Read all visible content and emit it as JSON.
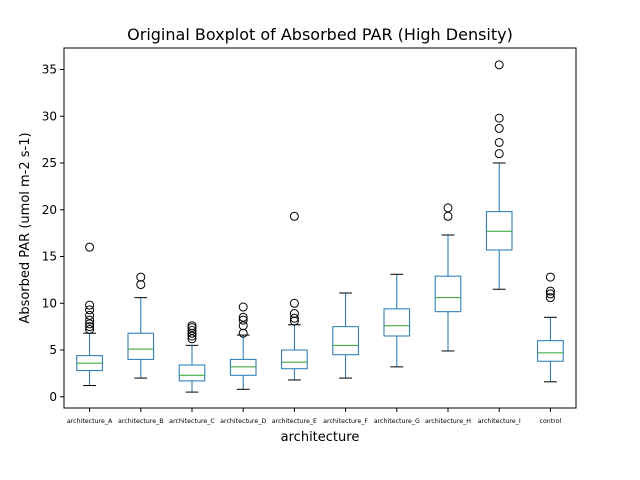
{
  "chart_data": {
    "type": "boxplot",
    "title": "Original Boxplot of Absorbed PAR (High Density)",
    "xlabel": "architecture",
    "ylabel": "Absorbed PAR (umol m-2 s-1)",
    "ylim": [
      -1.2,
      37.3
    ],
    "yticks": [
      0,
      5,
      10,
      15,
      20,
      25,
      30,
      35
    ],
    "grid": false,
    "colors": {
      "box": "#1f77b4",
      "median": "#2ca02c",
      "whisker": "#000000",
      "flier": "#000000"
    },
    "categories": [
      "architecture_A",
      "architecture_B",
      "architecture_C",
      "architecture_D",
      "architecture_E",
      "architecture_F",
      "architecture_G",
      "architecture_H",
      "architecture_I",
      "control"
    ],
    "boxes": [
      {
        "whislo": 1.2,
        "q1": 2.8,
        "med": 3.6,
        "q3": 4.4,
        "whishi": 6.8,
        "fliers": [
          7.2,
          7.5,
          7.8,
          8.2,
          8.7,
          9.3,
          9.8,
          16.0
        ]
      },
      {
        "whislo": 2.0,
        "q1": 4.0,
        "med": 5.1,
        "q3": 6.8,
        "whishi": 10.6,
        "fliers": [
          12.0,
          12.8
        ]
      },
      {
        "whislo": 0.5,
        "q1": 1.7,
        "med": 2.3,
        "q3": 3.4,
        "whishi": 5.5,
        "fliers": [
          6.2,
          6.5,
          6.8,
          7.1,
          7.4,
          7.6
        ]
      },
      {
        "whislo": 0.8,
        "q1": 2.3,
        "med": 3.2,
        "q3": 4.0,
        "whishi": 6.6,
        "fliers": [
          6.8,
          7.6,
          8.2,
          8.5,
          9.6
        ]
      },
      {
        "whislo": 1.8,
        "q1": 3.0,
        "med": 3.7,
        "q3": 5.0,
        "whishi": 7.7,
        "fliers": [
          8.1,
          8.4,
          8.9,
          10.0,
          19.3
        ]
      },
      {
        "whislo": 2.0,
        "q1": 4.5,
        "med": 5.5,
        "q3": 7.5,
        "whishi": 11.1,
        "fliers": []
      },
      {
        "whislo": 3.2,
        "q1": 6.5,
        "med": 7.6,
        "q3": 9.4,
        "whishi": 13.1,
        "fliers": []
      },
      {
        "whislo": 4.9,
        "q1": 9.1,
        "med": 10.6,
        "q3": 12.9,
        "whishi": 17.3,
        "fliers": [
          19.3,
          20.2
        ]
      },
      {
        "whislo": 11.5,
        "q1": 15.7,
        "med": 17.7,
        "q3": 19.8,
        "whishi": 25.0,
        "fliers": [
          26.0,
          27.2,
          28.7,
          29.8,
          35.5
        ]
      },
      {
        "whislo": 1.6,
        "q1": 3.8,
        "med": 4.7,
        "q3": 6.0,
        "whishi": 8.5,
        "fliers": [
          10.6,
          11.0,
          11.3,
          12.8
        ]
      }
    ]
  }
}
